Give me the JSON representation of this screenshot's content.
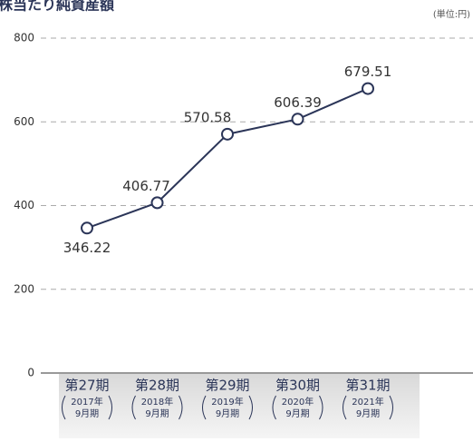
{
  "chart_data": {
    "type": "line",
    "title": "株当たり純資産額",
    "unit": "(単位:円)",
    "categories": [
      "第27期",
      "第28期",
      "第29期",
      "第30期",
      "第31期"
    ],
    "category_notes": [
      [
        "2017年",
        "9月期"
      ],
      [
        "2018年",
        "9月期"
      ],
      [
        "2019年",
        "9月期"
      ],
      [
        "2020年",
        "9月期"
      ],
      [
        "2021年",
        "9月期"
      ]
    ],
    "values": [
      346.22,
      406.77,
      570.58,
      606.39,
      679.51
    ],
    "color": "#2b3558",
    "ylim": [
      0,
      800
    ],
    "yticks": [
      0,
      200,
      400,
      600,
      800
    ],
    "grid": true
  }
}
